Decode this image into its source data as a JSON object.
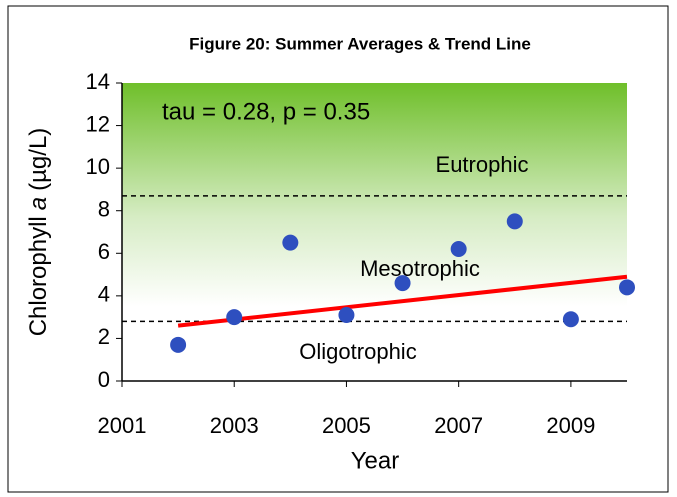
{
  "chart_data": {
    "type": "scatter",
    "title": "Figure 20:  Summer Averages & Trend Line",
    "xlabel": "Year",
    "ylabel": [
      "Chlorophyll",
      "a",
      "(µg/L)"
    ],
    "annotations": [
      "tau = 0.28, p = 0.35",
      "Eutrophic",
      "Mesotrophic",
      "Oligotrophic"
    ],
    "x": [
      2002,
      2003,
      2004,
      2005,
      2006,
      2007,
      2008,
      2009,
      2010
    ],
    "values": [
      1.7,
      3.0,
      6.5,
      3.1,
      4.6,
      6.2,
      7.5,
      2.9,
      4.4
    ],
    "color": "#2e4fbf",
    "trend": {
      "x": [
        2002,
        2010
      ],
      "values": [
        2.6,
        4.9
      ],
      "color": "#ff0000"
    },
    "reference_lines": [
      8.7,
      2.8
    ],
    "xlim": [
      2001,
      2010
    ],
    "xticks": [
      2001,
      2003,
      2005,
      2007,
      2009
    ],
    "ylim": [
      0,
      14
    ],
    "yticks": [
      0,
      2,
      4,
      6,
      8,
      10,
      12,
      14
    ]
  }
}
